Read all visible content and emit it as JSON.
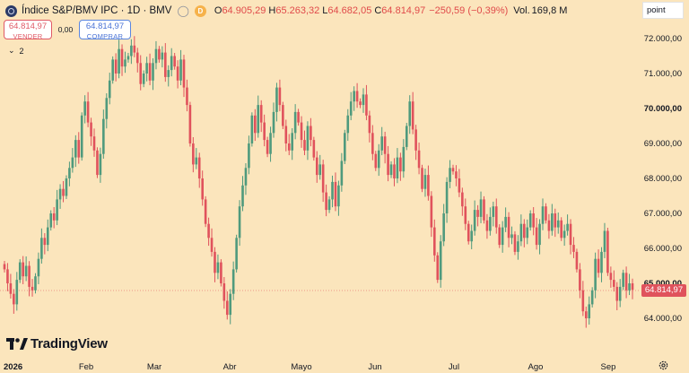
{
  "symbol": {
    "title": "Índice S&P/BMV IPC · 1D · BMV",
    "badge": "D",
    "open_label": "O",
    "open": "64.905,29",
    "high_label": "H",
    "high": "65.263,32",
    "low_label": "L",
    "low": "64.682,05",
    "close_label": "C",
    "close": "64.814,97",
    "change": "−250,59 (−0,39%)",
    "volume_label": "Vol.",
    "volume": "169,8 M"
  },
  "trade": {
    "sell_price": "64.814,97",
    "sell_label": "VENDER",
    "spread": "0,00",
    "buy_price": "64.814,97",
    "buy_label": "COMPRAR"
  },
  "indicators_count": "2",
  "toolbar": {
    "mode": "point"
  },
  "last_price": "64.814,97",
  "logo_text": "TradingView",
  "colors": {
    "up": "#4f9a7d",
    "down": "#e0525c",
    "background": "#fbe5bc"
  },
  "icons": [
    "symbol-icon",
    "eye-icon",
    "chevron-down-icon",
    "gear-icon",
    "tradingview-logo-icon"
  ],
  "chart_data": {
    "type": "candlestick",
    "price_axis": [
      "72.000,00",
      "71.000,00",
      "70.000,00",
      "69.000,00",
      "68.000,00",
      "67.000,00",
      "66.000,00",
      "65.000,00",
      "64.000,00"
    ],
    "ylim": [
      63600,
      72400
    ],
    "time_axis": [
      "2026",
      "Feb",
      "Mar",
      "Abr",
      "Mayo",
      "Jun",
      "Jul",
      "Ago",
      "Sep"
    ],
    "last_close": 64814.97,
    "close_series": [
      65400,
      65000,
      64700,
      64400,
      65100,
      65600,
      65200,
      65500,
      64900,
      64800,
      65200,
      65700,
      66300,
      66100,
      66600,
      67000,
      66800,
      67400,
      67700,
      67500,
      68000,
      68300,
      68600,
      69100,
      68600,
      69800,
      70200,
      69600,
      69200,
      68800,
      68100,
      68700,
      69700,
      70300,
      70800,
      71400,
      71000,
      71700,
      71200,
      71400,
      71500,
      71800,
      71600,
      71300,
      70700,
      71000,
      71300,
      70800,
      71300,
      71700,
      71400,
      71600,
      70900,
      71100,
      71500,
      71200,
      70800,
      71400,
      70600,
      70100,
      69000,
      68400,
      68600,
      68000,
      67400,
      66700,
      66300,
      65900,
      65300,
      65600,
      65000,
      64500,
      64100,
      64700,
      65400,
      66300,
      67200,
      67800,
      68300,
      69000,
      69800,
      69300,
      70100,
      69600,
      69100,
      68700,
      69300,
      69900,
      70600,
      70100,
      69500,
      69000,
      68800,
      69300,
      69900,
      69600,
      69100,
      68800,
      69500,
      69100,
      68600,
      68100,
      68400,
      67600,
      67100,
      67400,
      67900,
      67200,
      67800,
      68500,
      69300,
      69800,
      70200,
      70500,
      70200,
      70100,
      70400,
      69800,
      69300,
      68700,
      68300,
      68800,
      69200,
      68700,
      68100,
      68400,
      68000,
      68600,
      68200,
      68900,
      69500,
      70200,
      69400,
      68800,
      68300,
      67700,
      68100,
      67500,
      66600,
      65800,
      65100,
      66200,
      67000,
      67900,
      68300,
      68200,
      68000,
      67600,
      67200,
      66700,
      66200,
      66500,
      67100,
      66900,
      67400,
      66800,
      66500,
      66900,
      67200,
      66600,
      66100,
      66600,
      66900,
      66300,
      66400,
      65900,
      66200,
      66700,
      66300,
      66600,
      67000,
      66600,
      66100,
      66700,
      67200,
      66800,
      66500,
      67000,
      66600,
      66800,
      66300,
      66500,
      66700,
      66100,
      65900,
      65400,
      64800,
      64200,
      64000,
      64400,
      64800,
      65700,
      65300,
      65900,
      66500,
      65300,
      65100,
      64900,
      64500,
      64900,
      65300,
      64800,
      65000,
      64815
    ]
  }
}
